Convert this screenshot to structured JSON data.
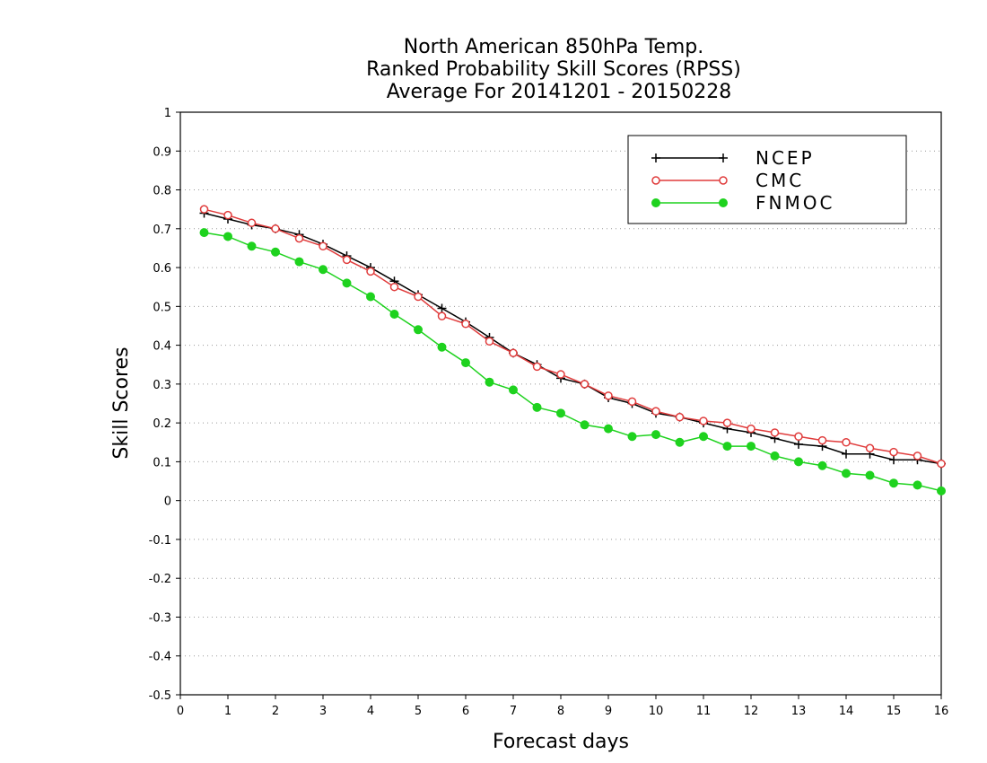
{
  "chart_data": {
    "type": "line",
    "title_lines": [
      "North American 850hPa Temp.",
      "Ranked Probability Skill Scores (RPSS)",
      "Average For 20141201 - 20150228"
    ],
    "xlabel": "Forecast days",
    "ylabel": "Skill Scores",
    "xlim": [
      0,
      16
    ],
    "ylim": [
      -0.5,
      1
    ],
    "x_ticks": [
      0,
      1,
      2,
      3,
      4,
      5,
      6,
      7,
      8,
      9,
      10,
      11,
      12,
      13,
      14,
      15,
      16
    ],
    "y_ticks": [
      -0.5,
      -0.4,
      -0.3,
      -0.2,
      -0.1,
      0,
      0.1,
      0.2,
      0.3,
      0.4,
      0.5,
      0.6,
      0.7,
      0.8,
      0.9,
      1
    ],
    "y_tick_labels": [
      "-0.5",
      "-0.4",
      "-0.3",
      "-0.2",
      "-0.1",
      "0",
      "0.1",
      "0.2",
      "0.3",
      "0.4",
      "0.5",
      "0.6",
      "0.7",
      "0.8",
      "0.9",
      "1"
    ],
    "grid": "horizontal dotted",
    "legend_position": "top-right",
    "x": [
      0.5,
      1,
      1.5,
      2,
      2.5,
      3,
      3.5,
      4,
      4.5,
      5,
      5.5,
      6,
      6.5,
      7,
      7.5,
      8,
      8.5,
      9,
      9.5,
      10,
      10.5,
      11,
      11.5,
      12,
      12.5,
      13,
      13.5,
      14,
      14.5,
      15,
      15.5,
      16
    ],
    "series": [
      {
        "name": "NCEP",
        "color": "#000000",
        "marker": "plus",
        "values": [
          0.74,
          0.725,
          0.71,
          0.7,
          0.685,
          0.66,
          0.63,
          0.6,
          0.565,
          0.53,
          0.495,
          0.46,
          0.42,
          0.38,
          0.35,
          0.315,
          0.3,
          0.265,
          0.25,
          0.225,
          0.215,
          0.2,
          0.185,
          0.175,
          0.16,
          0.145,
          0.14,
          0.12,
          0.12,
          0.105,
          0.105,
          0.095
        ]
      },
      {
        "name": "CMC",
        "color": "#e03c3c",
        "marker": "open-circle",
        "values": [
          0.75,
          0.735,
          0.715,
          0.7,
          0.675,
          0.655,
          0.62,
          0.59,
          0.55,
          0.525,
          0.475,
          0.455,
          0.41,
          0.38,
          0.345,
          0.325,
          0.3,
          0.27,
          0.255,
          0.23,
          0.215,
          0.205,
          0.2,
          0.185,
          0.175,
          0.165,
          0.155,
          0.15,
          0.135,
          0.125,
          0.115,
          0.095
        ]
      },
      {
        "name": "FNMOC",
        "color": "#1ed21e",
        "marker": "filled-circle",
        "values": [
          0.69,
          0.68,
          0.655,
          0.64,
          0.615,
          0.595,
          0.56,
          0.525,
          0.48,
          0.44,
          0.395,
          0.355,
          0.305,
          0.285,
          0.24,
          0.225,
          0.195,
          0.185,
          0.165,
          0.17,
          0.15,
          0.165,
          0.14,
          0.14,
          0.115,
          0.1,
          0.09,
          0.07,
          0.065,
          0.045,
          0.04,
          0.025
        ]
      }
    ]
  }
}
